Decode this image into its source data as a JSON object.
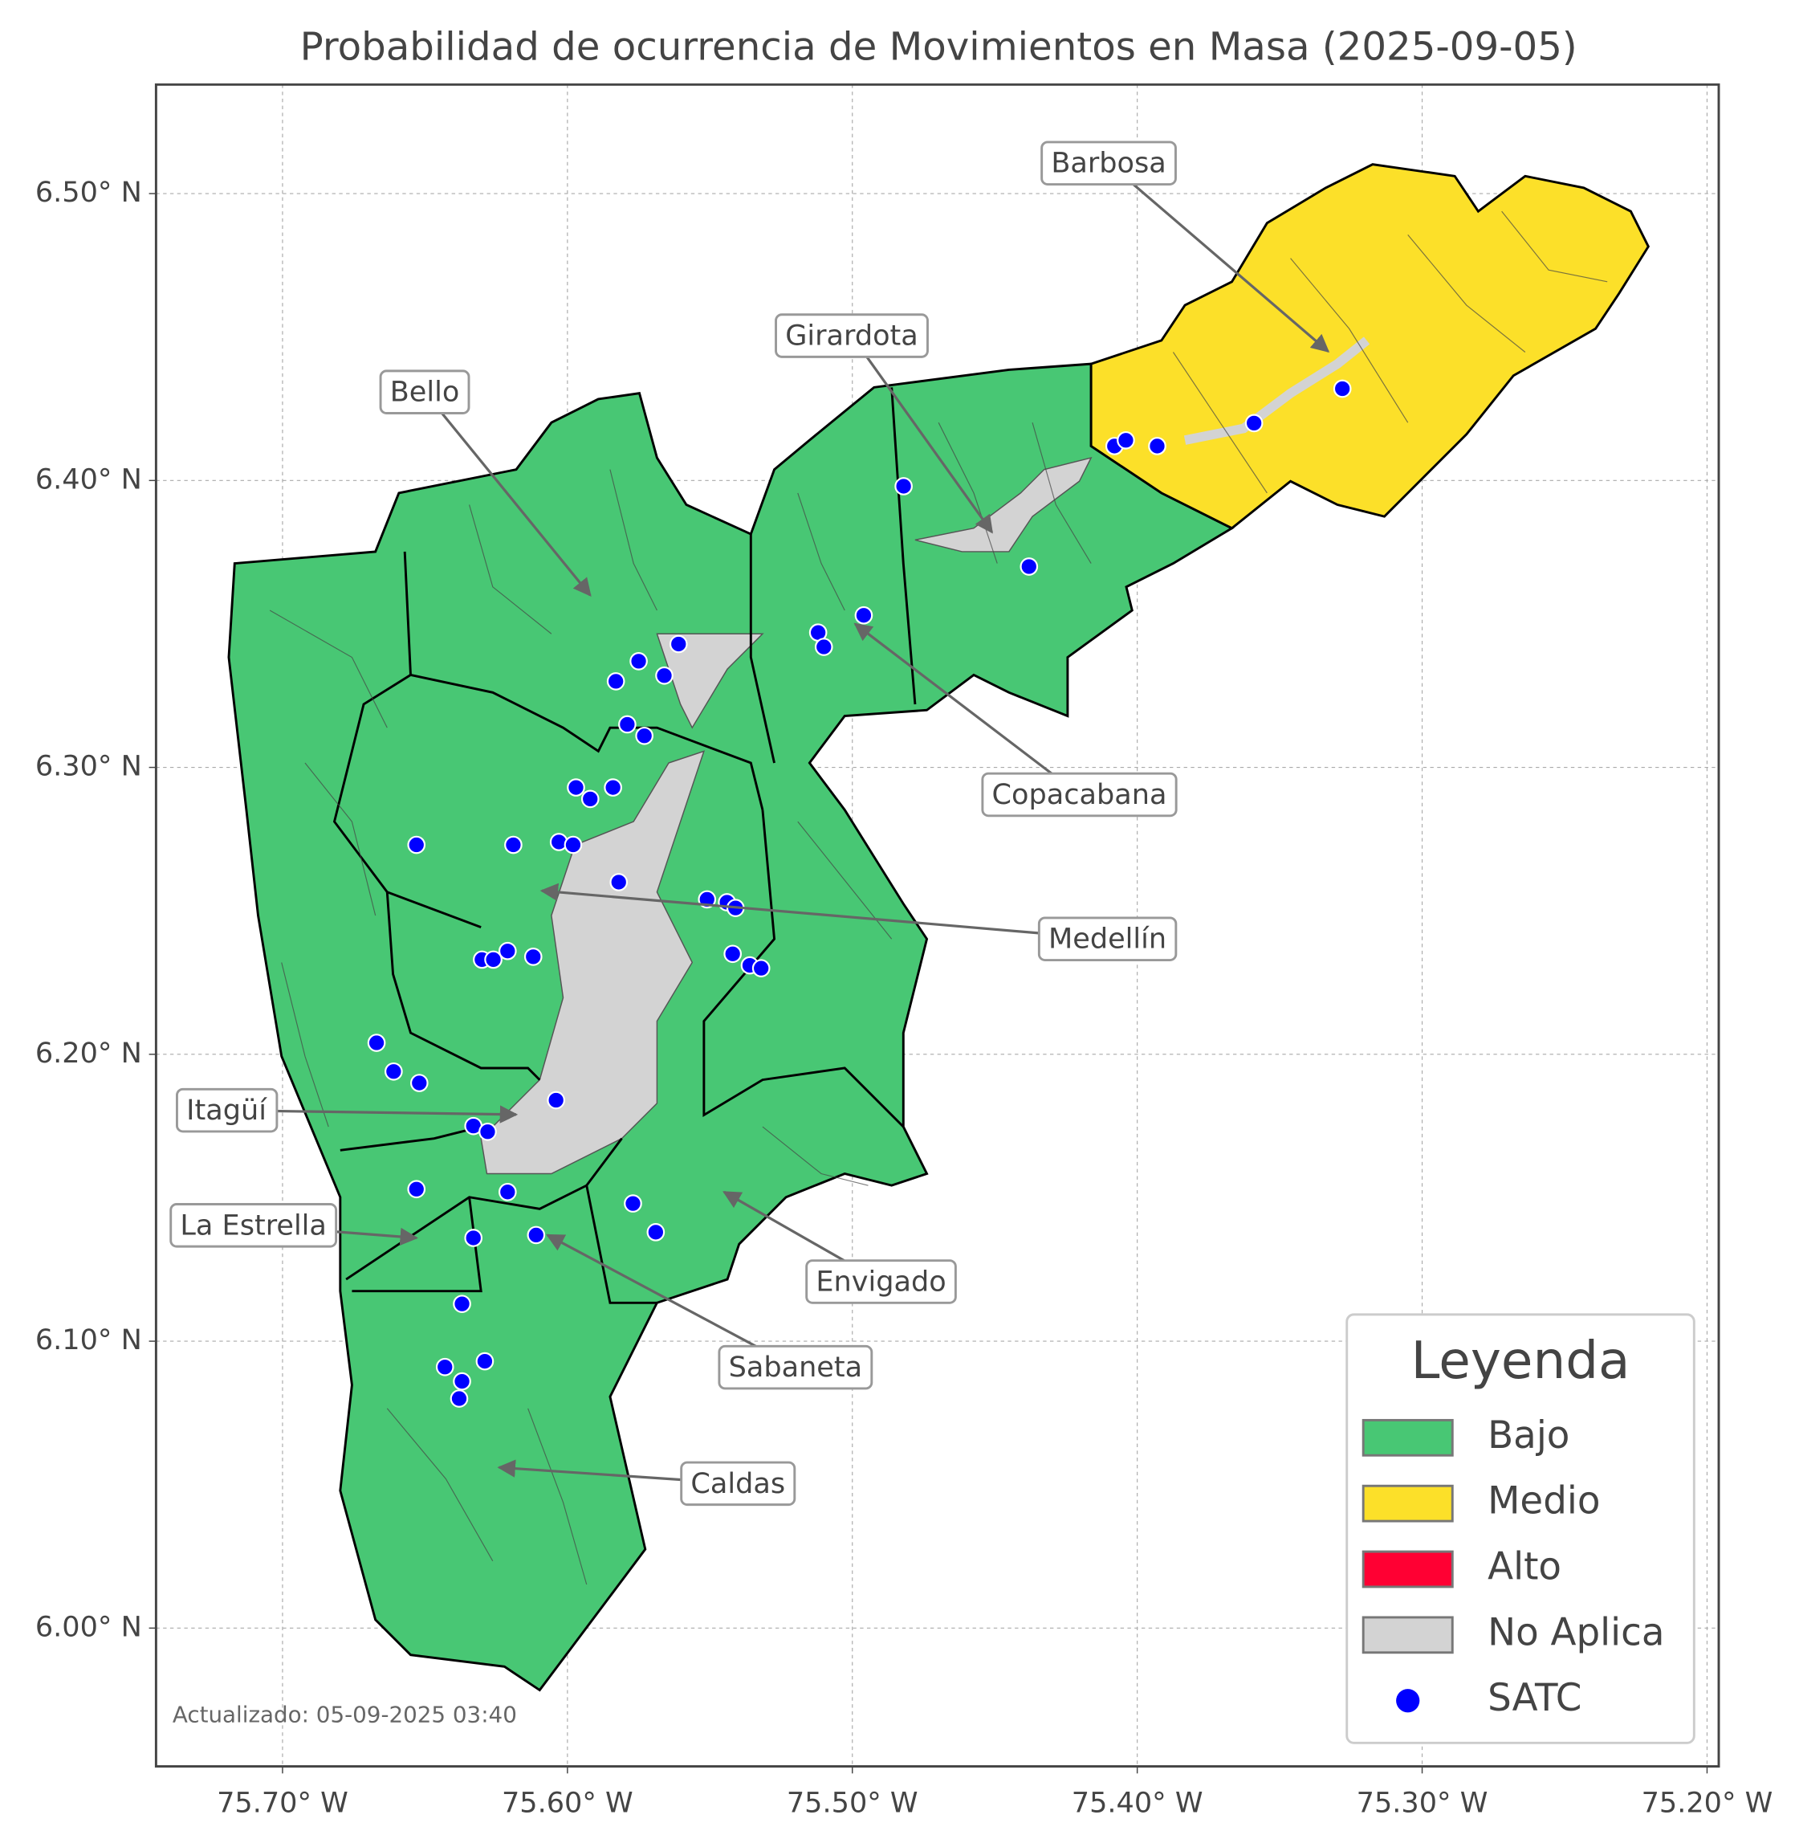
{
  "chart_data": {
    "type": "map",
    "title": "Probabilidad de ocurrencia de Movimientos en Masa (2025-09-05)",
    "footnote": "Actualizado: 05-09-2025 03:40",
    "xlim": [
      -75.7444,
      -75.1959
    ],
    "ylim": [
      5.9518,
      6.538
    ],
    "xticks": [
      {
        "value": -75.7,
        "label": "75.70° W"
      },
      {
        "value": -75.6,
        "label": "75.60° W"
      },
      {
        "value": -75.5,
        "label": "75.50° W"
      },
      {
        "value": -75.4,
        "label": "75.40° W"
      },
      {
        "value": -75.3,
        "label": "75.30° W"
      },
      {
        "value": -75.2,
        "label": "75.20° W"
      }
    ],
    "yticks": [
      {
        "value": 6.0,
        "label": "6.00° N"
      },
      {
        "value": 6.1,
        "label": "6.10° N"
      },
      {
        "value": 6.2,
        "label": "6.20° N"
      },
      {
        "value": 6.3,
        "label": "6.30° N"
      },
      {
        "value": 6.4,
        "label": "6.40° N"
      },
      {
        "value": 6.5,
        "label": "6.50° N"
      }
    ],
    "grid": true,
    "legend": {
      "title": "Leyenda",
      "position": "lower right"
    },
    "classes": [
      {
        "name": "Bajo",
        "color": "#48c774"
      },
      {
        "name": "Medio",
        "color": "#fce029"
      },
      {
        "name": "Alto",
        "color": "#ff0033"
      },
      {
        "name": "No Aplica",
        "color": "#d3d3d3"
      }
    ],
    "series": [
      {
        "name": "SATC",
        "color": "#0000ff",
        "x": [
          -75.482,
          -75.408,
          -75.404,
          -75.393,
          -75.359,
          -75.328,
          -75.438,
          -75.496,
          -75.512,
          -75.51,
          -75.561,
          -75.575,
          -75.566,
          -75.583,
          -75.579,
          -75.573,
          -75.597,
          -75.592,
          -75.584,
          -75.653,
          -75.619,
          -75.603,
          -75.598,
          -75.582,
          -75.551,
          -75.544,
          -75.541,
          -75.542,
          -75.536,
          -75.532,
          -75.63,
          -75.626,
          -75.621,
          -75.612,
          -75.667,
          -75.661,
          -75.652,
          -75.604,
          -75.633,
          -75.628,
          -75.653,
          -75.621,
          -75.577,
          -75.569,
          -75.633,
          -75.611,
          -75.637,
          -75.643,
          -75.629,
          -75.637,
          -75.638
        ],
        "y": [
          6.398,
          6.412,
          6.414,
          6.412,
          6.42,
          6.432,
          6.37,
          6.353,
          6.347,
          6.342,
          6.343,
          6.337,
          6.332,
          6.33,
          6.315,
          6.311,
          6.293,
          6.289,
          6.293,
          6.273,
          6.273,
          6.274,
          6.273,
          6.26,
          6.254,
          6.253,
          6.251,
          6.235,
          6.231,
          6.23,
          6.233,
          6.233,
          6.236,
          6.234,
          6.204,
          6.194,
          6.19,
          6.184,
          6.175,
          6.173,
          6.153,
          6.152,
          6.148,
          6.138,
          6.136,
          6.137,
          6.113,
          6.091,
          6.093,
          6.086,
          6.08
        ]
      }
    ],
    "annotations": [
      {
        "text": "Barbosa",
        "x": -75.333,
        "y": 6.445
      },
      {
        "text": "Girardota",
        "x": -75.451,
        "y": 6.382
      },
      {
        "text": "Bello",
        "x": -75.592,
        "y": 6.36
      },
      {
        "text": "Copacabana",
        "x": -75.499,
        "y": 6.35
      },
      {
        "text": "Medellín",
        "x": -75.609,
        "y": 6.257
      },
      {
        "text": "Itagüí",
        "x": -75.618,
        "y": 6.179
      },
      {
        "text": "La Estrella",
        "x": -75.653,
        "y": 6.136
      },
      {
        "text": "Envigado",
        "x": -75.545,
        "y": 6.152
      },
      {
        "text": "Sabaneta",
        "x": -75.607,
        "y": 6.137
      },
      {
        "text": "Caldas",
        "x": -75.624,
        "y": 6.056
      }
    ]
  }
}
